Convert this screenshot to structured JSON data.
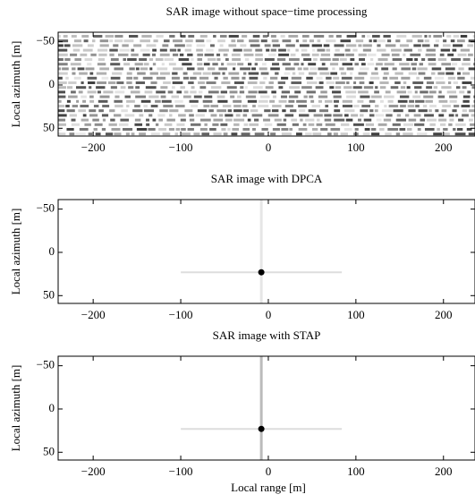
{
  "chart_data": [
    {
      "type": "texture",
      "title": "SAR image without space−time processing",
      "ylabel": "Local azimuth [m]",
      "xlim": [
        -240,
        236
      ],
      "ylim": [
        -61,
        59
      ],
      "y_reversed": true,
      "xticks": [
        {
          "value": -200,
          "label": "−200"
        },
        {
          "value": -100,
          "label": "−100"
        },
        0,
        100,
        200
      ],
      "yticks": [
        {
          "value": -50,
          "label": "−50"
        },
        0,
        50
      ]
    },
    {
      "type": "spot",
      "title": "SAR image with DPCA",
      "ylabel": "Local azimuth [m]",
      "xlim": [
        -240,
        236
      ],
      "ylim": [
        -61,
        59
      ],
      "y_reversed": true,
      "x": [
        -8
      ],
      "values": [
        23
      ],
      "xticks": [
        {
          "value": -200,
          "label": "−200"
        },
        {
          "value": -100,
          "label": "−100"
        },
        0,
        100,
        200
      ],
      "yticks": [
        {
          "value": -50,
          "label": "−50"
        },
        0,
        50
      ]
    },
    {
      "type": "spot",
      "title": "SAR image with STAP",
      "ylabel": "Local azimuth [m]",
      "xlabel": "Local range [m]",
      "xlim": [
        -240,
        236
      ],
      "ylim": [
        -61,
        59
      ],
      "y_reversed": true,
      "x": [
        -8
      ],
      "values": [
        23
      ],
      "xticks": [
        {
          "value": -200,
          "label": "−200"
        },
        {
          "value": -100,
          "label": "−100"
        },
        0,
        100,
        200
      ],
      "yticks": [
        {
          "value": -50,
          "label": "−50"
        },
        0,
        50
      ]
    }
  ]
}
